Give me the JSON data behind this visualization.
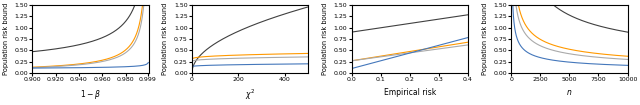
{
  "figsize": [
    6.4,
    1.05
  ],
  "dpi": 100,
  "ylim": [
    0.0,
    1.5
  ],
  "yticks": [
    0.0,
    0.25,
    0.5,
    0.75,
    1.0,
    1.25,
    1.5
  ],
  "colors": {
    "black": "#404040",
    "orange": "#ff9900",
    "gray": "#aaaaaa",
    "blue": "#4477bb"
  },
  "plot1": {
    "xlabel": "$1 - \\beta$",
    "xlim": [
      0.9,
      0.9995
    ],
    "xticks": [
      0.9,
      0.92,
      0.94,
      0.96,
      0.98,
      0.999
    ]
  },
  "plot2": {
    "xlabel": "$\\chi^2$",
    "xlim": [
      0,
      500
    ],
    "xticks": [
      0,
      200,
      400
    ]
  },
  "plot3": {
    "xlabel": "Empirical risk",
    "xlim": [
      0.0,
      0.4
    ],
    "xticks": [
      0.0,
      0.1,
      0.2,
      0.3,
      0.4
    ]
  },
  "plot4": {
    "xlabel": "$n$",
    "xlim": [
      0,
      10000
    ],
    "xticks": [
      0,
      2500,
      5000,
      7500,
      10000
    ]
  }
}
